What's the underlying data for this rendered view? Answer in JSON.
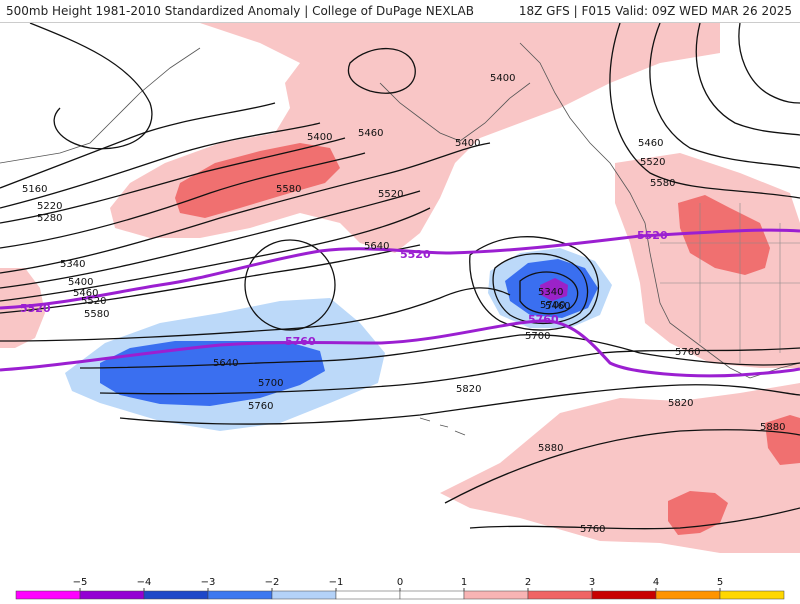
{
  "header": {
    "title": "500mb Height 1981-2010 Standardized Anomaly | College of DuPage NEXLAB",
    "valid": "18Z GFS | F015 Valid: 09Z WED MAR 26 2025"
  },
  "contour_labels": [
    "5400",
    "5460",
    "5520",
    "5580",
    "5160",
    "5220",
    "5280",
    "5340",
    "5400",
    "5460",
    "5520",
    "5580",
    "5640",
    "5700",
    "5760",
    "5820",
    "5880",
    "5400",
    "5460",
    "5520",
    "5580",
    "5340",
    "5460",
    "5700",
    "5760",
    "5820",
    "5880",
    "5400",
    "5640",
    "5700",
    "5760"
  ],
  "highlight_labels": [
    "5520",
    "5520",
    "5760",
    "5520",
    "5760"
  ],
  "legend": {
    "ticks": [
      "−5",
      "−4",
      "−3",
      "−2",
      "−1",
      "0",
      "1",
      "2",
      "3",
      "4",
      "5"
    ],
    "colors": [
      "#ff00ff",
      "#9400d3",
      "#1e48c8",
      "#3c78f0",
      "#b4d2f8",
      "#ffffff",
      "#ffffff",
      "#f8b4b4",
      "#f06464",
      "#c80000",
      "#ff9400",
      "#ffd700"
    ]
  },
  "colors": {
    "anom_pos_light": "#f9c6c6",
    "anom_pos_med": "#f07070",
    "anom_neg_light": "#bcd9f9",
    "anom_neg_med": "#3a6ff0",
    "anom_neg_dark": "#9b22c8",
    "highlight_contour": "#9b1fd1"
  }
}
